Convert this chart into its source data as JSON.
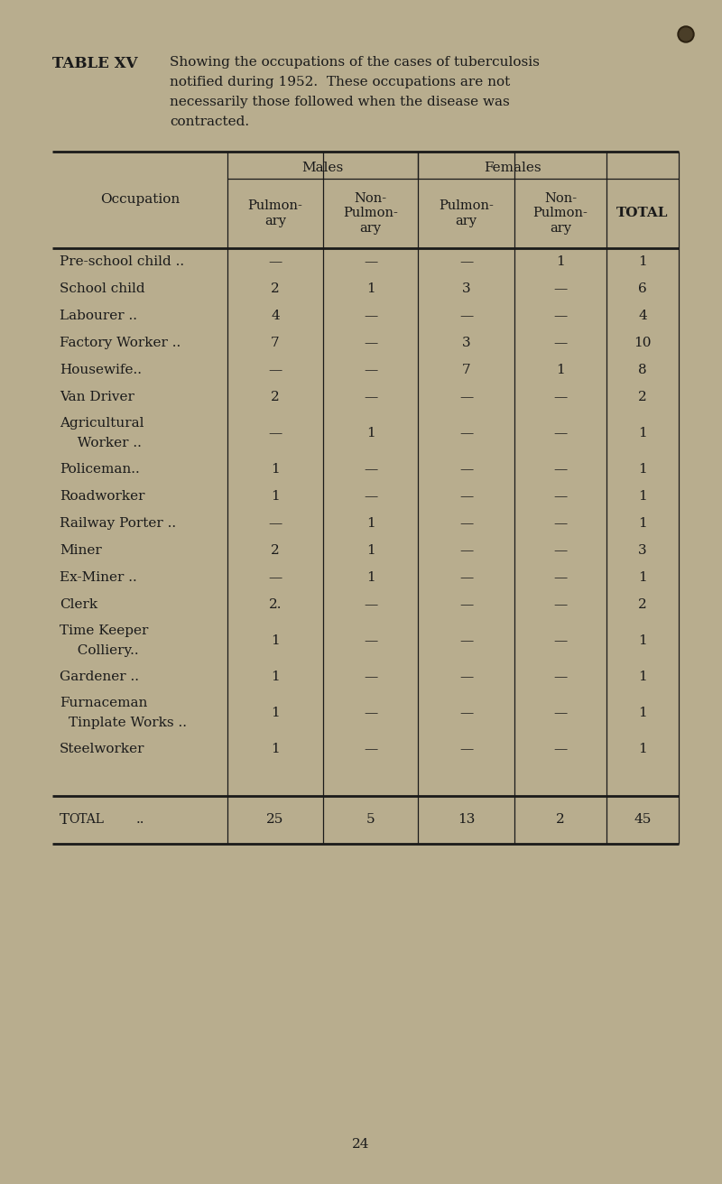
{
  "title_label": "TABLE XV",
  "title_text_line1": "Showing the occupations of the cases of tuberculosis",
  "title_text_line2": "notified during 1952.  These occupations are not",
  "title_text_line3": "necessarily those followed when the disease was",
  "title_text_line4": "contracted.",
  "bg_color": "#b8ad8e",
  "text_color": "#1a1a1a",
  "page_number": "24",
  "rows": [
    {
      "occupation": "Pre-school child ..",
      "occ2": null,
      "m_pulm": "—",
      "m_nonpulm": "—",
      "f_pulm": "—",
      "f_nonpulm": "1",
      "total": "1",
      "double": false
    },
    {
      "occupation": "School child",
      "occ2": null,
      "m_pulm": "2",
      "m_nonpulm": "1",
      "f_pulm": "3",
      "f_nonpulm": "—",
      "total": "6",
      "double": false
    },
    {
      "occupation": "Labourer ..",
      "occ2": null,
      "m_pulm": "4",
      "m_nonpulm": "—",
      "f_pulm": "—",
      "f_nonpulm": "—",
      "total": "4",
      "double": false
    },
    {
      "occupation": "Factory Worker ..",
      "occ2": null,
      "m_pulm": "7",
      "m_nonpulm": "—",
      "f_pulm": "3",
      "f_nonpulm": "—",
      "total": "10",
      "double": false
    },
    {
      "occupation": "Housewife..",
      "occ2": null,
      "m_pulm": "—",
      "m_nonpulm": "—",
      "f_pulm": "7",
      "f_nonpulm": "1",
      "total": "8",
      "double": false
    },
    {
      "occupation": "Van Driver",
      "occ2": null,
      "m_pulm": "2",
      "m_nonpulm": "—",
      "f_pulm": "—",
      "f_nonpulm": "—",
      "total": "2",
      "double": false
    },
    {
      "occupation": "Agricultural",
      "occ2": "  Worker ..",
      "m_pulm": "—",
      "m_nonpulm": "1",
      "f_pulm": "—",
      "f_nonpulm": "—",
      "total": "1",
      "double": true
    },
    {
      "occupation": "Policeman..",
      "occ2": null,
      "m_pulm": "1",
      "m_nonpulm": "—",
      "f_pulm": "—",
      "f_nonpulm": "—",
      "total": "1",
      "double": false
    },
    {
      "occupation": "Roadworker",
      "occ2": null,
      "m_pulm": "1",
      "m_nonpulm": "—",
      "f_pulm": "—",
      "f_nonpulm": "—",
      "total": "1",
      "double": false
    },
    {
      "occupation": "Railway Porter ..",
      "occ2": null,
      "m_pulm": "—",
      "m_nonpulm": "1",
      "f_pulm": "—",
      "f_nonpulm": "—",
      "total": "1",
      "double": false
    },
    {
      "occupation": "Miner",
      "occ2": null,
      "m_pulm": "2",
      "m_nonpulm": "1",
      "f_pulm": "—",
      "f_nonpulm": "—",
      "total": "3",
      "double": false
    },
    {
      "occupation": "Ex-Miner ..",
      "occ2": null,
      "m_pulm": "—",
      "m_nonpulm": "1",
      "f_pulm": "—",
      "f_nonpulm": "—",
      "total": "1",
      "double": false
    },
    {
      "occupation": "Clerk",
      "occ2": null,
      "m_pulm": "2.",
      "m_nonpulm": "—",
      "f_pulm": "—",
      "f_nonpulm": "—",
      "total": "2",
      "double": false
    },
    {
      "occupation": "Time Keeper",
      "occ2": "  Colliery..",
      "m_pulm": "1",
      "m_nonpulm": "—",
      "f_pulm": "—",
      "f_nonpulm": "—",
      "total": "1",
      "double": true
    },
    {
      "occupation": "Gardener ..",
      "occ2": null,
      "m_pulm": "1",
      "m_nonpulm": "—",
      "f_pulm": "—",
      "f_nonpulm": "—",
      "total": "1",
      "double": false
    },
    {
      "occupation": "Furnaceman",
      "occ2": "Tinplate Works ..",
      "m_pulm": "1",
      "m_nonpulm": "—",
      "f_pulm": "—",
      "f_nonpulm": "—",
      "total": "1",
      "double": true
    },
    {
      "occupation": "Steelworker",
      "occ2": null,
      "m_pulm": "1",
      "m_nonpulm": "—",
      "f_pulm": "—",
      "f_nonpulm": "—",
      "total": "1",
      "double": false
    }
  ],
  "total_row": {
    "m_pulm": "25",
    "m_nonpulm": "5",
    "f_pulm": "13",
    "f_nonpulm": "2",
    "total": "45"
  }
}
